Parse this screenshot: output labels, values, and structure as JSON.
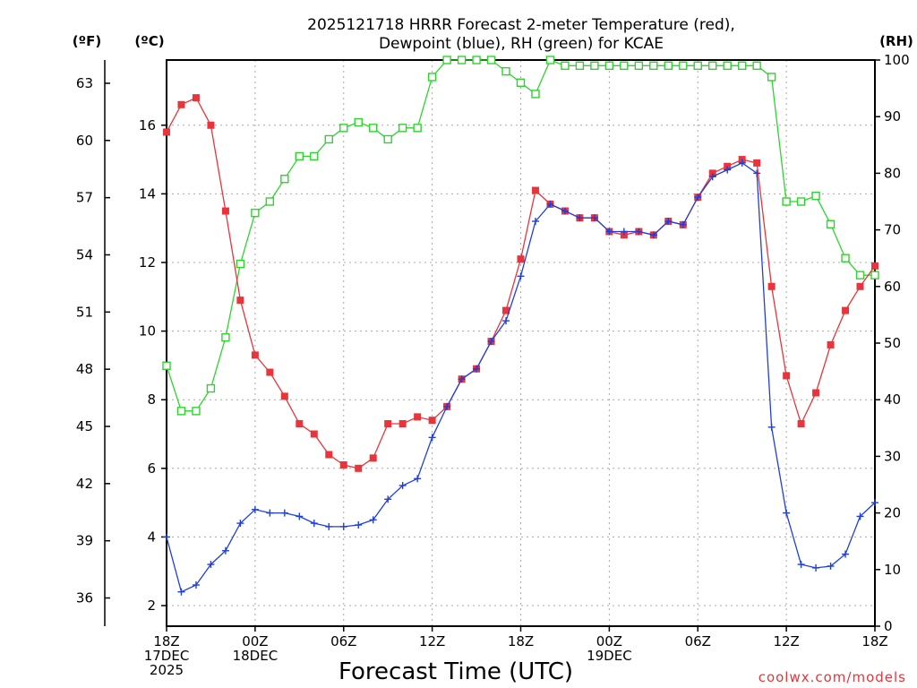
{
  "title_line1": "2025121718 HRRR Forecast 2-meter Temperature (red),",
  "title_line2": "Dewpoint (blue), RH (green) for KCAE",
  "credit": "coolwx.com/models",
  "chart_data": {
    "type": "line",
    "xlabel": "Forecast Time (UTC)",
    "x_hours": [
      0,
      1,
      2,
      3,
      4,
      5,
      6,
      7,
      8,
      9,
      10,
      11,
      12,
      13,
      14,
      15,
      16,
      17,
      18,
      19,
      20,
      21,
      22,
      23,
      24,
      25,
      26,
      27,
      28,
      29,
      30,
      31,
      32,
      33,
      34,
      35,
      36,
      37,
      38,
      39,
      40,
      41,
      42,
      43,
      44,
      45,
      46,
      47,
      48
    ],
    "x_ticks": [
      {
        "hour": 0,
        "lines": [
          "18Z",
          "17DEC",
          "2025"
        ]
      },
      {
        "hour": 6,
        "lines": [
          "00Z",
          "18DEC"
        ]
      },
      {
        "hour": 12,
        "lines": [
          "06Z"
        ]
      },
      {
        "hour": 18,
        "lines": [
          "12Z"
        ]
      },
      {
        "hour": 24,
        "lines": [
          "18Z"
        ]
      },
      {
        "hour": 30,
        "lines": [
          "00Z",
          "19DEC"
        ]
      },
      {
        "hour": 36,
        "lines": [
          "06Z"
        ]
      },
      {
        "hour": 42,
        "lines": [
          "12Z"
        ]
      },
      {
        "hour": 48,
        "lines": [
          "18Z"
        ]
      }
    ],
    "left_axis_celsius": {
      "unit": "(ºC)",
      "ticks": [
        2,
        4,
        6,
        8,
        10,
        12,
        14,
        16
      ],
      "range": [
        1.4,
        17.9
      ]
    },
    "left_axis_fahrenheit": {
      "unit": "(ºF)",
      "ticks": [
        36,
        39,
        42,
        45,
        48,
        51,
        54,
        57,
        60,
        63
      ]
    },
    "right_axis_rh": {
      "unit": "(RH)",
      "ticks": [
        0,
        10,
        20,
        30,
        40,
        50,
        60,
        70,
        80,
        90,
        100
      ],
      "range": [
        0,
        100
      ]
    },
    "grid": true,
    "series": [
      {
        "name": "Temperature",
        "axis": "celsius",
        "color": "#e8343a",
        "marker": "filled-square",
        "values": [
          15.8,
          16.6,
          16.8,
          16.0,
          13.5,
          10.9,
          9.3,
          8.8,
          8.1,
          7.3,
          7.0,
          6.4,
          6.1,
          6.0,
          6.3,
          7.3,
          7.3,
          7.5,
          7.4,
          7.8,
          8.6,
          8.9,
          9.7,
          10.6,
          12.1,
          14.1,
          13.7,
          13.5,
          13.3,
          13.3,
          12.9,
          12.8,
          12.9,
          12.8,
          13.2,
          13.1,
          13.9,
          14.6,
          14.8,
          15.0,
          14.9,
          11.3,
          8.7,
          7.3,
          8.2,
          9.6,
          10.6,
          11.3,
          11.9
        ]
      },
      {
        "name": "Dewpoint",
        "axis": "celsius",
        "color": "#1f3fdc",
        "marker": "plus",
        "values": [
          4.0,
          2.4,
          2.6,
          3.2,
          3.6,
          4.4,
          4.8,
          4.7,
          4.7,
          4.6,
          4.4,
          4.3,
          4.3,
          4.35,
          4.5,
          5.1,
          5.5,
          5.7,
          6.9,
          7.8,
          8.6,
          8.9,
          9.7,
          10.3,
          11.6,
          13.2,
          13.7,
          13.5,
          13.3,
          13.3,
          12.9,
          12.9,
          12.9,
          12.8,
          13.2,
          13.1,
          13.9,
          14.5,
          14.7,
          14.9,
          14.6,
          7.2,
          4.7,
          3.2,
          3.1,
          3.15,
          3.5,
          4.6,
          5.0
        ]
      },
      {
        "name": "RH",
        "axis": "rh",
        "color": "#2ed42e",
        "marker": "open-square",
        "values": [
          46,
          38,
          38,
          42,
          51,
          64,
          73,
          75,
          79,
          83,
          83,
          86,
          88,
          89,
          88,
          86,
          88,
          88,
          97,
          100,
          100,
          100,
          100,
          98,
          96,
          94,
          100,
          99,
          99,
          99,
          99,
          99,
          99,
          99,
          99,
          99,
          99,
          99,
          99,
          99,
          99,
          97,
          75,
          75,
          76,
          71,
          65,
          62,
          62
        ]
      }
    ]
  }
}
